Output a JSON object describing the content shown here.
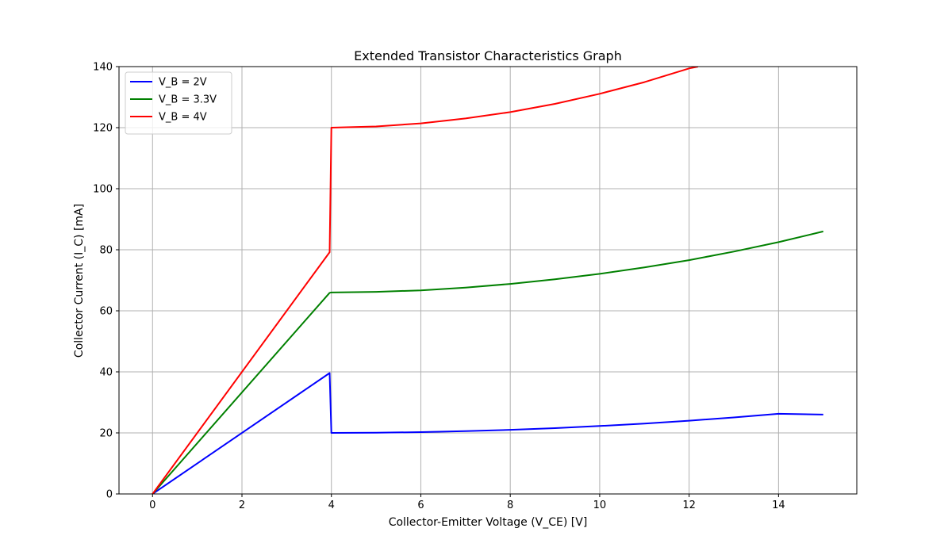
{
  "chart_data": {
    "type": "line",
    "title": "Extended Transistor Characteristics Graph",
    "xlabel": "Collector-Emitter Voltage (V_CE) [V]",
    "ylabel": "Collector Current (I_C) [mA]",
    "xlim": [
      -0.75,
      15.75
    ],
    "ylim": [
      0,
      140
    ],
    "x_ticks": [
      0,
      2,
      4,
      6,
      8,
      10,
      12,
      14
    ],
    "y_ticks": [
      0,
      20,
      40,
      60,
      80,
      100,
      120,
      140
    ],
    "grid": true,
    "legend_position": "upper-left",
    "series": [
      {
        "name": "V_B = 2V",
        "color": "#0000ff",
        "x": [
          0,
          3.96,
          4.0,
          5,
          6,
          7,
          8,
          9,
          10,
          11,
          12,
          13,
          14,
          15
        ],
        "y": [
          0,
          39.6,
          20.0,
          20.06,
          20.25,
          20.56,
          21.0,
          21.56,
          22.25,
          23.06,
          24.0,
          25.06,
          26.25,
          26.0
        ]
      },
      {
        "name": "V_B = 3.3V",
        "color": "#008000",
        "x": [
          0,
          3.96,
          4.0,
          5,
          6,
          7,
          8,
          9,
          10,
          11,
          12,
          13,
          14,
          15
        ],
        "y": [
          0,
          65.9,
          66.0,
          66.2,
          66.7,
          67.6,
          68.8,
          70.3,
          72.1,
          74.2,
          76.6,
          79.4,
          82.5,
          86.0
        ]
      },
      {
        "name": "V_B = 4V",
        "color": "#ff0000",
        "x": [
          0,
          3.96,
          4.0,
          5,
          6,
          7,
          8,
          9,
          10,
          11,
          12,
          12.2
        ],
        "y": [
          0,
          79.2,
          120.0,
          120.4,
          121.4,
          123.0,
          125.1,
          127.8,
          131.1,
          134.9,
          139.4,
          140.0
        ]
      }
    ]
  }
}
